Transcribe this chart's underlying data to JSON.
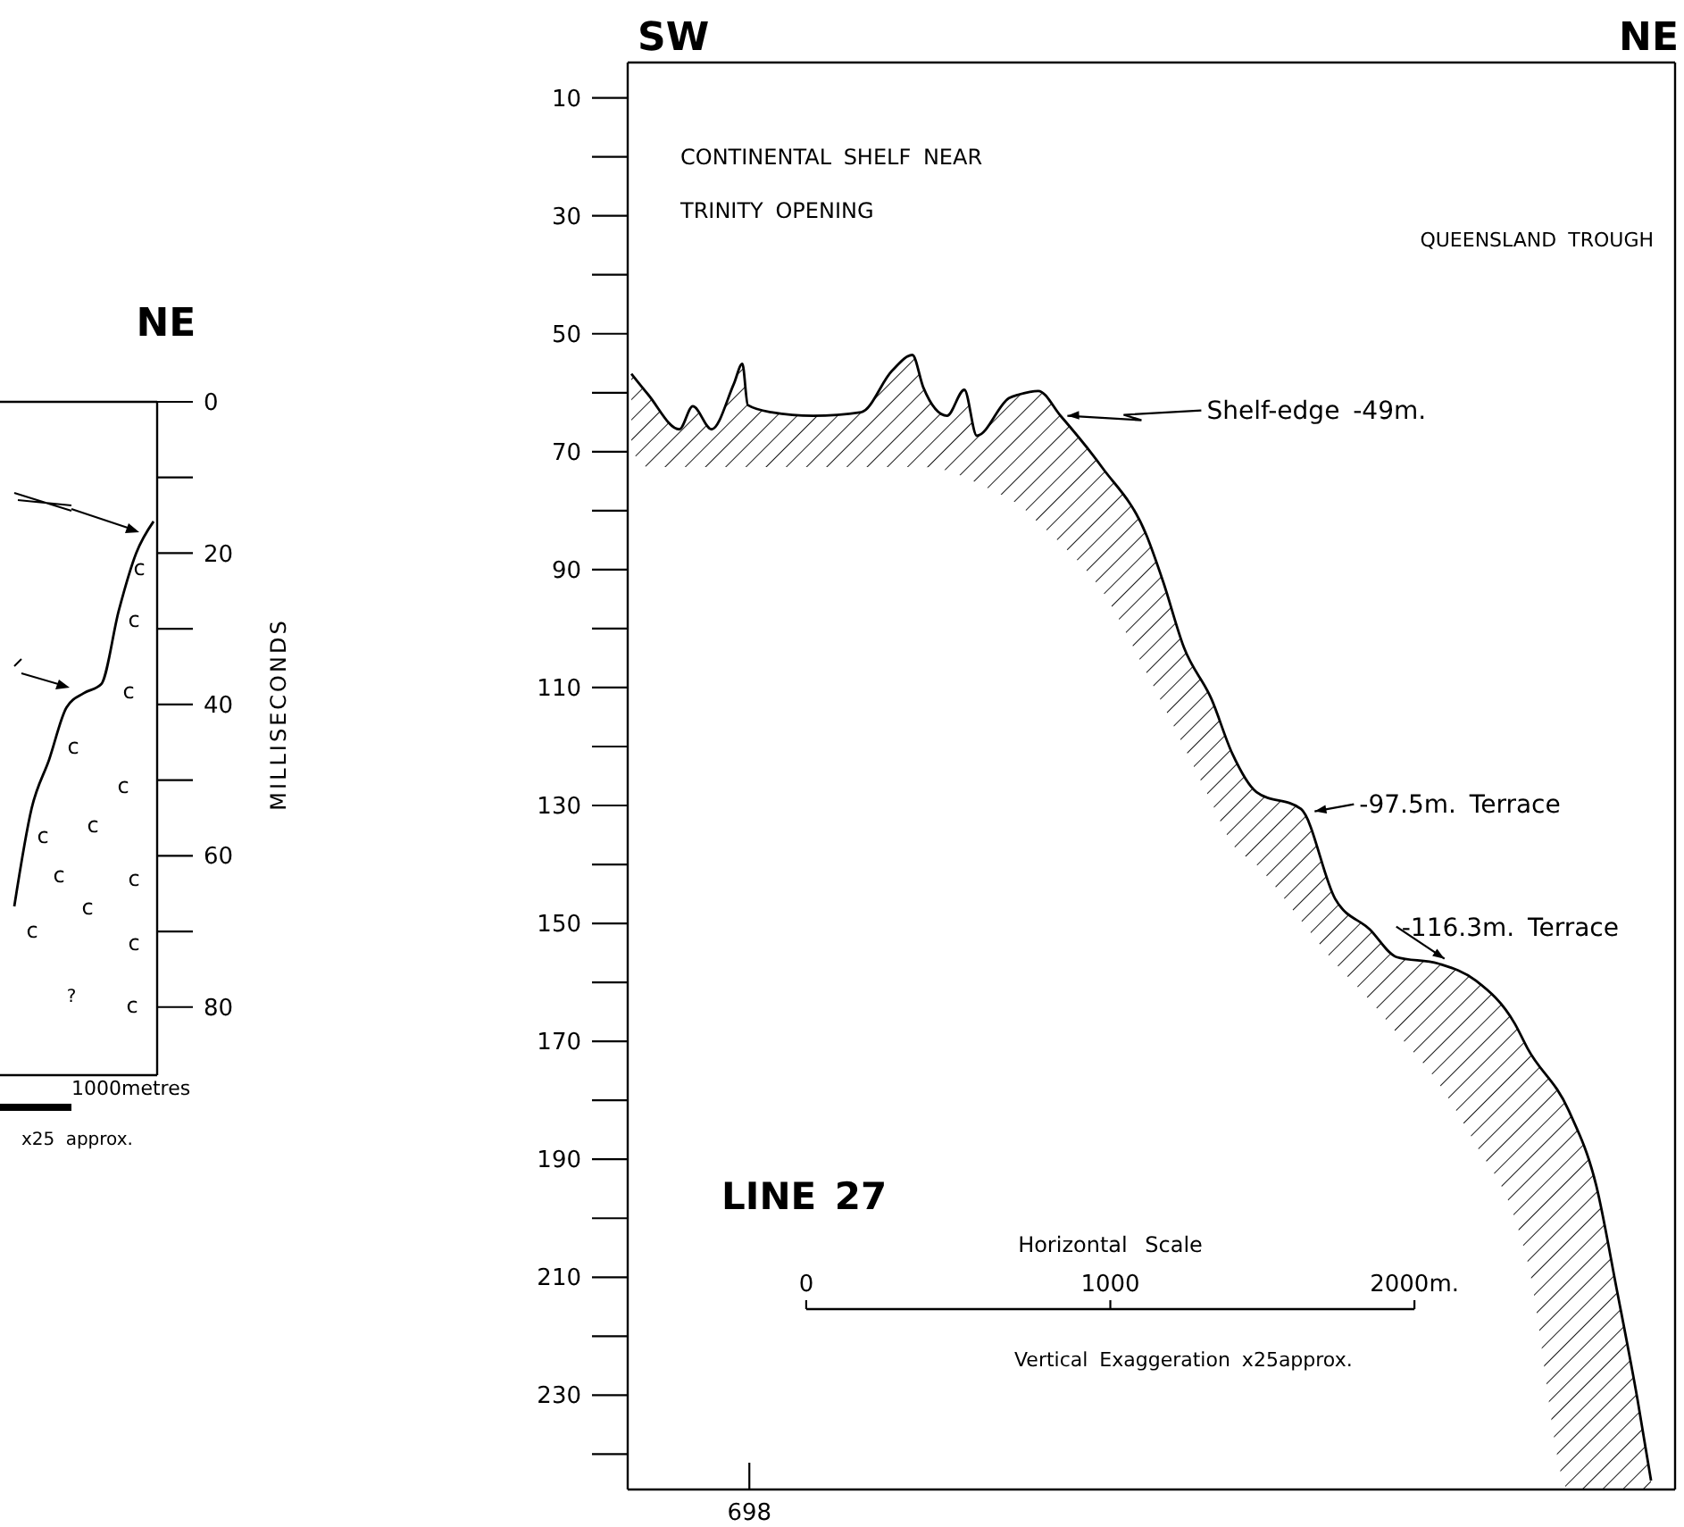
{
  "chart_data": [
    {
      "type": "line",
      "title": "NE",
      "ylabel": "MILLISECONDS",
      "categories": [
        null,
        null,
        null,
        null,
        null,
        null,
        null,
        null,
        null
      ],
      "series": [
        {
          "color": "#000000",
          "values": [
            66.7,
            53.7,
            47.3,
            40.4,
            38.5,
            37.3,
            27.6,
            20.0,
            15.8
          ]
        }
      ],
      "ylim": [
        89,
        0
      ],
      "yticks": [
        0,
        20,
        40,
        60,
        80
      ],
      "tick_labels": "y",
      "annotations": [
        "c",
        "c",
        "c",
        "c",
        "c",
        "c",
        "c",
        "c",
        "c",
        "c",
        "c",
        "c",
        "c",
        "?",
        "1000metres",
        "x25 approx."
      ]
    },
    {
      "type": "line",
      "xlabel": "Horizontal Scale",
      "x": [
        -575,
        -520,
        -417,
        -373,
        -311,
        -238,
        -210,
        -192,
        -115,
        23,
        181,
        282,
        349,
        385,
        463,
        520,
        561,
        667,
        700,
        763,
        836,
        972,
        1119,
        1174,
        1242,
        1333,
        1401,
        1480,
        1627,
        1739,
        1853,
        1941,
        2078,
        2202,
        2330,
        2372,
        2507,
        2598,
        2665,
        2733,
        2778
      ],
      "series": [
        {
          "color": "#000000",
          "values": [
            56.8,
            60.3,
            66.2,
            62.3,
            66.2,
            58.5,
            55.1,
            62.1,
            63.3,
            63.9,
            63.3,
            56.3,
            53.6,
            59.1,
            63.9,
            59.5,
            67.3,
            60.9,
            60.3,
            59.7,
            63.9,
            72.6,
            84.2,
            92.1,
            103.2,
            112,
            121.2,
            127.7,
            130.6,
            145.8,
            151,
            155.7,
            156.8,
            159.7,
            167,
            171.2,
            181.7,
            194.5,
            212,
            230.6,
            244.5
          ],
          "upper": [
            56.8,
            60.3,
            66.2,
            62.3,
            66.2,
            58.5,
            55.1,
            62.1,
            63.3,
            63.9,
            63.3,
            56.3,
            53.6,
            59.1,
            63.9,
            59.5,
            67.3,
            60.9,
            60.3,
            59.7,
            63.9,
            72.6,
            84.2,
            92.1,
            103.2,
            112,
            121.2,
            127.7,
            130.6,
            145.8,
            151,
            155.7,
            156.8,
            159.7,
            167,
            171.2,
            181.7,
            194.5,
            212,
            230.6,
            244.5
          ],
          "lower": [
            69.7,
            72.6,
            72.6,
            72.6,
            72.6,
            72.6,
            72.6,
            72.6,
            72.6,
            72.6,
            72.6,
            72.6,
            72.6,
            72.6,
            73.2,
            74.3,
            75.3,
            78,
            79,
            82,
            85.5,
            93.5,
            107.5,
            113,
            120,
            129.5,
            136.5,
            140,
            149.5,
            156.7,
            163,
            168.5,
            177,
            187.5,
            200,
            207.4,
            246,
            246,
            246,
            246,
            246
          ]
        }
      ],
      "xlim": [
        -587,
        2857
      ],
      "xticks": [
        0,
        1000,
        {
          "value": 2000,
          "label": "2000m."
        }
      ],
      "ylim": [
        246,
        4
      ],
      "yticks": [
        10,
        30,
        50,
        70,
        90,
        110,
        130,
        150,
        170,
        190,
        210,
        230
      ],
      "annotations": [
        "SW",
        "NE",
        "CONTINENTAL SHELF NEAR",
        "TRINITY OPENING",
        "QUEENSLAND TROUGH",
        {
          "text": "Shelf-edge -49m.",
          "x": 847,
          "y": 63.9
        },
        {
          "text": "-97.5m. Terrace",
          "x": 1660,
          "y": 131
        },
        {
          "text": "-116.3m. Terrace",
          "x": 2087,
          "y": 156
        },
        "LINE 27",
        "Vertical Exaggeration x25approx.",
        {
          "text": "698",
          "x": -187
        }
      ]
    }
  ]
}
